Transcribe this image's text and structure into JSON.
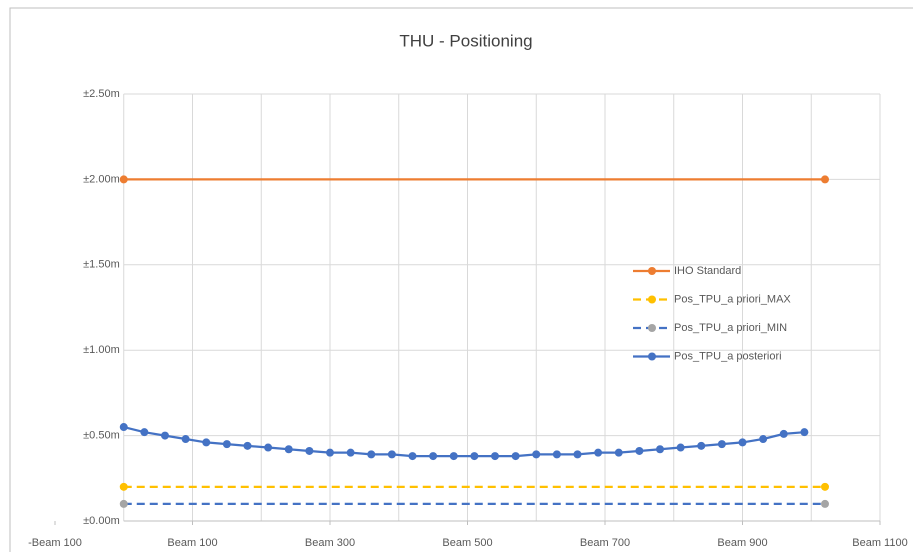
{
  "chart_data": {
    "type": "line",
    "title": "THU - Positioning",
    "xlim": [
      -100,
      1100
    ],
    "xticks": [
      {
        "value": -100,
        "label": "-Beam 100"
      },
      {
        "value": 100,
        "label": "Beam 100"
      },
      {
        "value": 300,
        "label": "Beam 300"
      },
      {
        "value": 500,
        "label": "Beam 500"
      },
      {
        "value": 700,
        "label": "Beam 700"
      },
      {
        "value": 900,
        "label": "Beam 900"
      },
      {
        "value": 1100,
        "label": "Beam 1100"
      }
    ],
    "xgrid": [
      0,
      100,
      200,
      300,
      400,
      500,
      600,
      700,
      800,
      900,
      1000,
      1100
    ],
    "ylim": [
      0,
      2.5
    ],
    "yticks": [
      {
        "value": 0,
        "label": "±0.00m"
      },
      {
        "value": 0.5,
        "label": "±0.50m"
      },
      {
        "value": 1,
        "label": "±1.00m"
      },
      {
        "value": 1.5,
        "label": "±1.50m"
      },
      {
        "value": 2,
        "label": "±2.00m"
      },
      {
        "value": 2.5,
        "label": "±2.50m"
      }
    ],
    "grid": true,
    "series": [
      {
        "name": "IHO Standard",
        "color": "#ed7d31",
        "marker_color": "#ed7d31",
        "dashed": false,
        "x": [
          0,
          1020
        ],
        "values": [
          2,
          2
        ]
      },
      {
        "name": "Pos_TPU_a priori_MAX",
        "color": "#ffc000",
        "marker_color": "#ffc000",
        "dashed": true,
        "x": [
          0,
          1020
        ],
        "values": [
          0.2,
          0.2
        ]
      },
      {
        "name": "Pos_TPU_a priori_MIN",
        "color": "#4472c4",
        "marker_color": "#a5a5a5",
        "dashed": true,
        "x": [
          0,
          1020
        ],
        "values": [
          0.1,
          0.1
        ]
      },
      {
        "name": "Pos_TPU_a posteriori",
        "color": "#4472c4",
        "marker_color": "#4472c4",
        "dashed": false,
        "x": [
          0,
          30,
          60,
          90,
          120,
          150,
          180,
          210,
          240,
          270,
          300,
          330,
          360,
          390,
          420,
          450,
          480,
          510,
          540,
          570,
          600,
          630,
          660,
          690,
          720,
          750,
          780,
          810,
          840,
          870,
          900,
          930,
          960,
          990
        ],
        "values": [
          0.55,
          0.52,
          0.5,
          0.48,
          0.46,
          0.45,
          0.44,
          0.43,
          0.42,
          0.41,
          0.4,
          0.4,
          0.39,
          0.39,
          0.38,
          0.38,
          0.38,
          0.38,
          0.38,
          0.38,
          0.39,
          0.39,
          0.39,
          0.4,
          0.4,
          0.41,
          0.42,
          0.43,
          0.44,
          0.45,
          0.46,
          0.48,
          0.51,
          0.52
        ]
      }
    ]
  }
}
